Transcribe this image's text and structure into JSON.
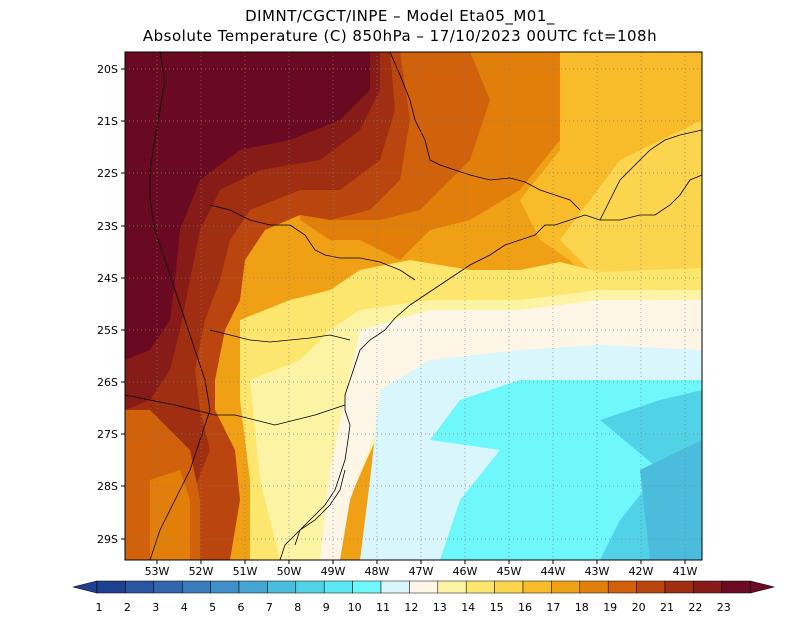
{
  "title": {
    "line1": "DIMNT/CGCT/INPE –  Model Eta05_M01_",
    "line2": "Absolute Temperature (C) 850hPa –  17/10/2023 00UTC fct=108h"
  },
  "axes": {
    "lat_labels": [
      "20S",
      "21S",
      "22S",
      "23S",
      "24S",
      "25S",
      "26S",
      "27S",
      "28S",
      "29S"
    ],
    "lon_labels": [
      "53W",
      "52W",
      "51W",
      "50W",
      "49W",
      "48W",
      "47W",
      "46W",
      "45W",
      "44W",
      "43W",
      "42W",
      "41W"
    ]
  },
  "colorbar": {
    "labels": [
      "1",
      "2",
      "3",
      "4",
      "5",
      "6",
      "7",
      "8",
      "9",
      "10",
      "11",
      "12",
      "13",
      "14",
      "15",
      "16",
      "17",
      "18",
      "19",
      "20",
      "21",
      "22",
      "23"
    ],
    "colors": [
      "#1f3f8f",
      "#2a55a0",
      "#3266ad",
      "#3a7bbb",
      "#3f90c8",
      "#45a6d3",
      "#4cbcdc",
      "#52d2e6",
      "#5be8f2",
      "#6ef8fc",
      "#d8f6fc",
      "#fdf6e6",
      "#fdf3a4",
      "#fde66e",
      "#fcd54e",
      "#f8bb2a",
      "#f0a014",
      "#e27f0b",
      "#d1610a",
      "#bb450e",
      "#a02e10",
      "#861b18",
      "#6d0b26"
    ]
  },
  "map": {
    "colors": {
      "t22": "#6a0a22",
      "t21": "#861b18",
      "t20": "#a02e10",
      "t19": "#bb450e",
      "t18": "#d1610a",
      "t17": "#e27f0b",
      "t16": "#f0a014",
      "t15": "#f8bb2a",
      "t14": "#fcd54e",
      "t13": "#fde66e",
      "t12": "#fdf3a4",
      "t11": "#fdf6e6",
      "t10": "#d8f6fc",
      "t9": "#6ef8fc",
      "t8": "#52d2e6",
      "t7": "#4cbcdc",
      "t6": "#45a6d3"
    }
  }
}
